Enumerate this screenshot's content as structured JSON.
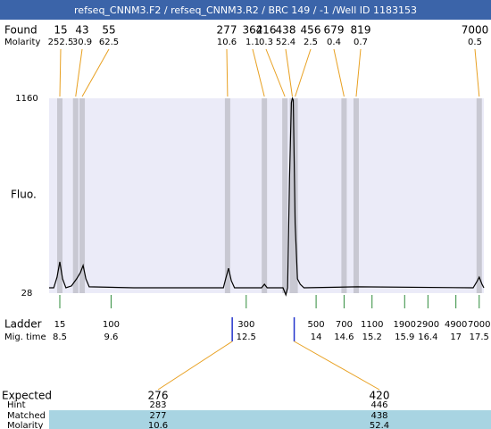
{
  "header": {
    "title": "refseq_CNNM3.F2 / refseq_CNNM3.R2 / BRC 149 / -1 /Well ID 1183153"
  },
  "found": {
    "label": "Found",
    "molarity_label": "Molarity",
    "peaks": [
      {
        "size": "15",
        "molarity": "252.5",
        "time": 8.5
      },
      {
        "size": "43",
        "molarity": "30.9",
        "time": 8.84
      },
      {
        "size": "55",
        "molarity": "62.5",
        "time": 8.98
      },
      {
        "size": "277",
        "molarity": "10.6",
        "time": 12.1
      },
      {
        "size": "362",
        "molarity": "1.1",
        "time": 12.89
      },
      {
        "size": "416",
        "molarity": "0.3",
        "time": 13.33
      },
      {
        "size": "438",
        "molarity": "52.4",
        "time": 13.49
      },
      {
        "size": "456",
        "molarity": "2.5",
        "time": 13.55
      },
      {
        "size": "679",
        "molarity": "0.4",
        "time": 14.6
      },
      {
        "size": "819",
        "molarity": "0.7",
        "time": 14.86
      },
      {
        "size": "7000",
        "molarity": "0.5",
        "time": 17.5
      }
    ]
  },
  "plot": {
    "y_label": "Fluo.",
    "ylim": [
      28,
      1160
    ],
    "yticks": [
      28,
      1160
    ],
    "xlim": [
      8.27,
      17.6
    ],
    "trace": {
      "x": [
        8.27,
        8.37,
        8.44,
        8.5,
        8.56,
        8.63,
        8.75,
        8.86,
        8.94,
        9.0,
        9.06,
        9.13,
        10.09,
        12.01,
        12.06,
        12.12,
        12.18,
        12.25,
        12.83,
        12.89,
        12.95,
        13.29,
        13.35,
        13.39,
        13.43,
        13.47,
        13.49,
        13.51,
        13.55,
        13.6,
        13.66,
        13.74,
        14.88,
        17.37,
        17.45,
        17.5,
        17.56,
        17.6
      ],
      "y": [
        59,
        59,
        121,
        210,
        111,
        59,
        70,
        111,
        147,
        189,
        111,
        65,
        59,
        59,
        111,
        173,
        100,
        59,
        59,
        80,
        59,
        59,
        18,
        59,
        693,
        1134,
        1160,
        1150,
        433,
        111,
        80,
        59,
        65,
        59,
        95,
        121,
        80,
        59
      ]
    }
  },
  "ladder": {
    "label": "Ladder",
    "time_label": "Mig. time",
    "items": [
      {
        "size": "15",
        "time": 8.5
      },
      {
        "size": "100",
        "time": 9.6
      },
      {
        "size": "300",
        "time": 12.5
      },
      {
        "size": "500",
        "time": 14
      },
      {
        "size": "700",
        "time": 14.6
      },
      {
        "size": "1100",
        "time": 15.2
      },
      {
        "size": "1900",
        "time": 15.9
      },
      {
        "size": "2900",
        "time": 16.4
      },
      {
        "size": "4900",
        "time": 17
      },
      {
        "size": "7000",
        "time": 17.5
      }
    ]
  },
  "expected": {
    "row_labels": [
      "Expected",
      "Hint",
      "Matched",
      "Molarity"
    ],
    "columns": [
      {
        "expected": "276",
        "hint": "283",
        "matched": "277",
        "molarity": "10.6",
        "time": 12.2
      },
      {
        "expected": "420",
        "hint": "446",
        "matched": "438",
        "molarity": "52.4",
        "time": 13.53
      }
    ]
  }
}
